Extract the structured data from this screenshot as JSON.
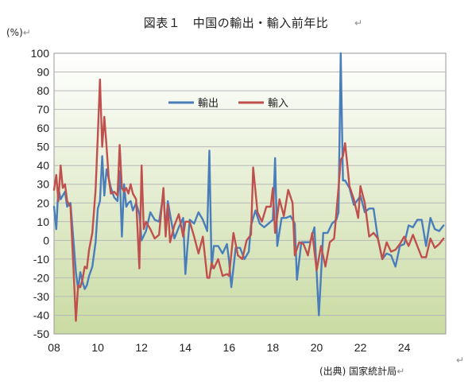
{
  "header": {
    "title": "図表１　中国の輸出・輸入前年比",
    "unit_label": "(%)",
    "source": "(出典) 国家統計局"
  },
  "chart_data": {
    "type": "line",
    "title": "図表１　中国の輸出・輸入前年比",
    "ylabel": "(%)",
    "ylim": [
      -50,
      100
    ],
    "xlim": [
      2008,
      2025.9
    ],
    "y_ticks": [
      100,
      90,
      80,
      70,
      60,
      50,
      40,
      30,
      20,
      10,
      0,
      -10,
      -20,
      -30,
      -40,
      -50
    ],
    "x_ticks": [
      {
        "value": 2008,
        "label": "08"
      },
      {
        "value": 2010,
        "label": "10"
      },
      {
        "value": 2012,
        "label": "12"
      },
      {
        "value": 2014,
        "label": "14"
      },
      {
        "value": 2016,
        "label": "16"
      },
      {
        "value": 2018,
        "label": "18"
      },
      {
        "value": 2020,
        "label": "20"
      },
      {
        "value": 2022,
        "label": "22"
      },
      {
        "value": 2024,
        "label": "24"
      }
    ],
    "grid": true,
    "legend_position": "top-center",
    "series": [
      {
        "name": "輸出",
        "color": "#4a7ebb",
        "x": [
          2008.0,
          2008.1,
          2008.2,
          2008.3,
          2008.5,
          2008.6,
          2008.75,
          2008.9,
          2009.0,
          2009.1,
          2009.2,
          2009.3,
          2009.4,
          2009.5,
          2009.6,
          2009.75,
          2009.9,
          2010.0,
          2010.1,
          2010.2,
          2010.3,
          2010.4,
          2010.5,
          2010.6,
          2010.75,
          2010.9,
          2011.0,
          2011.1,
          2011.2,
          2011.3,
          2011.4,
          2011.5,
          2011.6,
          2011.75,
          2011.9,
          2012.0,
          2012.2,
          2012.4,
          2012.6,
          2012.8,
          2013.0,
          2013.1,
          2013.2,
          2013.3,
          2013.5,
          2013.7,
          2013.9,
          2014.0,
          2014.1,
          2014.2,
          2014.4,
          2014.6,
          2014.8,
          2015.0,
          2015.1,
          2015.2,
          2015.3,
          2015.5,
          2015.7,
          2015.9,
          2016.0,
          2016.1,
          2016.3,
          2016.5,
          2016.7,
          2016.9,
          2017.0,
          2017.2,
          2017.4,
          2017.6,
          2017.8,
          2018.0,
          2018.1,
          2018.2,
          2018.4,
          2018.6,
          2018.8,
          2019.0,
          2019.1,
          2019.3,
          2019.5,
          2019.7,
          2019.9,
          2020.0,
          2020.1,
          2020.3,
          2020.5,
          2020.7,
          2020.9,
          2021.0,
          2021.1,
          2021.2,
          2021.3,
          2021.5,
          2021.7,
          2021.9,
          2022.0,
          2022.2,
          2022.4,
          2022.6,
          2022.8,
          2023.0,
          2023.2,
          2023.4,
          2023.6,
          2023.8,
          2024.0,
          2024.2,
          2024.4,
          2024.6,
          2024.8,
          2025.0,
          2025.2,
          2025.4,
          2025.6,
          2025.8
        ],
        "y": [
          18,
          6,
          28,
          22,
          26,
          18,
          20,
          -2,
          -17,
          -26,
          -17,
          -22,
          -26,
          -24,
          -19,
          -14,
          -1,
          17,
          21,
          45,
          24,
          38,
          33,
          28,
          23,
          21,
          37,
          2,
          30,
          18,
          20,
          21,
          16,
          20,
          14,
          0,
          5,
          15,
          11,
          10,
          25,
          5,
          21,
          14,
          1,
          7,
          12,
          -18,
          -3,
          11,
          9,
          15,
          11,
          5,
          48,
          -15,
          -3,
          -3,
          -7,
          -2,
          -11,
          -25,
          -4,
          -4,
          -10,
          -6,
          8,
          16,
          9,
          7,
          9,
          11,
          44,
          -3,
          12,
          12,
          13,
          9,
          -21,
          -1,
          -1,
          -1,
          7,
          -17,
          -40,
          4,
          4,
          9,
          11,
          15,
          100,
          32,
          32,
          28,
          19,
          22,
          24,
          15,
          17,
          17,
          1,
          -10,
          -7,
          -8,
          -14,
          -3,
          -2,
          8,
          7,
          11,
          11,
          -3,
          12,
          6,
          5,
          8
        ]
      },
      {
        "name": "輸入",
        "color": "#c0504d",
        "x": [
          2008.0,
          2008.1,
          2008.2,
          2008.3,
          2008.4,
          2008.5,
          2008.6,
          2008.75,
          2008.9,
          2009.0,
          2009.1,
          2009.2,
          2009.3,
          2009.4,
          2009.5,
          2009.6,
          2009.75,
          2009.9,
          2010.0,
          2010.1,
          2010.2,
          2010.3,
          2010.4,
          2010.5,
          2010.6,
          2010.75,
          2010.9,
          2011.0,
          2011.1,
          2011.2,
          2011.3,
          2011.4,
          2011.5,
          2011.6,
          2011.75,
          2011.9,
          2012.0,
          2012.1,
          2012.2,
          2012.4,
          2012.6,
          2012.8,
          2013.0,
          2013.1,
          2013.2,
          2013.3,
          2013.5,
          2013.7,
          2013.9,
          2014.0,
          2014.2,
          2014.4,
          2014.6,
          2014.8,
          2015.0,
          2015.1,
          2015.2,
          2015.3,
          2015.5,
          2015.7,
          2015.9,
          2016.0,
          2016.2,
          2016.4,
          2016.6,
          2016.8,
          2017.0,
          2017.1,
          2017.3,
          2017.5,
          2017.7,
          2017.9,
          2018.0,
          2018.1,
          2018.3,
          2018.5,
          2018.7,
          2018.9,
          2019.0,
          2019.2,
          2019.4,
          2019.6,
          2019.8,
          2020.0,
          2020.2,
          2020.4,
          2020.6,
          2020.8,
          2021.0,
          2021.1,
          2021.2,
          2021.3,
          2021.5,
          2021.7,
          2021.9,
          2022.0,
          2022.2,
          2022.4,
          2022.6,
          2022.8,
          2023.0,
          2023.2,
          2023.4,
          2023.6,
          2023.8,
          2024.0,
          2024.2,
          2024.4,
          2024.6,
          2024.8,
          2025.0,
          2025.2,
          2025.4,
          2025.6,
          2025.8
        ],
        "y": [
          27,
          35,
          21,
          40,
          28,
          30,
          21,
          18,
          -18,
          -43,
          -24,
          -25,
          -21,
          -14,
          -15,
          -5,
          4,
          27,
          56,
          86,
          50,
          66,
          50,
          33,
          25,
          26,
          24,
          51,
          28,
          26,
          28,
          25,
          30,
          25,
          22,
          -15,
          40,
          6,
          10,
          6,
          1,
          3,
          28,
          2,
          19,
          -1,
          8,
          14,
          2,
          10,
          10,
          2,
          -7,
          2,
          -20,
          -20,
          -12,
          -15,
          -10,
          -19,
          -18,
          -19,
          4,
          -8,
          -10,
          0,
          3,
          39,
          15,
          10,
          18,
          18,
          28,
          4,
          22,
          13,
          27,
          20,
          -8,
          -1,
          -2,
          -8,
          4,
          -16,
          -3,
          -14,
          -1,
          1,
          28,
          43,
          45,
          52,
          29,
          22,
          12,
          29,
          20,
          2,
          4,
          1,
          -10,
          -1,
          -6,
          -5,
          -2,
          2,
          -3,
          3,
          -3,
          -9,
          -9,
          1,
          -4,
          -2,
          1
        ]
      }
    ]
  }
}
